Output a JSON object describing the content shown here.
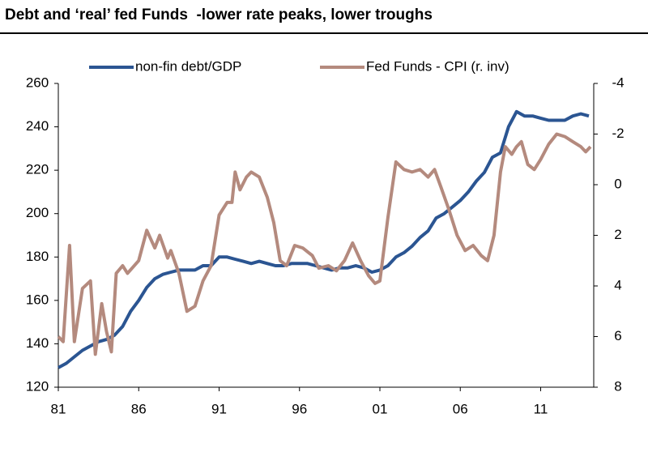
{
  "chart_data": {
    "type": "line",
    "title": "Debt and ‘real’ fed Funds  -lower rate peaks, lower troughs",
    "xlim": [
      1981,
      2014.3
    ],
    "xticks": [
      {
        "value": 1981,
        "label": "81"
      },
      {
        "value": 1986,
        "label": "86"
      },
      {
        "value": 1991,
        "label": "91"
      },
      {
        "value": 1996,
        "label": "96"
      },
      {
        "value": 2001,
        "label": "01"
      },
      {
        "value": 2006,
        "label": "06"
      },
      {
        "value": 2011,
        "label": "11"
      }
    ],
    "ylim": [
      120,
      260
    ],
    "yticks": [
      120,
      140,
      160,
      180,
      200,
      220,
      240,
      260
    ],
    "y2lim": [
      -4,
      8
    ],
    "y2ticks": [
      -4,
      -2,
      0,
      2,
      4,
      6,
      8
    ],
    "y2_inverted": true,
    "legend": "top",
    "series": [
      {
        "name": "non-fin debt/GDP",
        "color": "#2b5592",
        "x": [
          1981,
          1981.5,
          1982,
          1982.5,
          1983,
          1983.5,
          1984,
          1984.5,
          1985,
          1985.5,
          1986,
          1986.5,
          1987,
          1987.5,
          1988,
          1988.5,
          1989,
          1989.5,
          1990,
          1990.5,
          1991,
          1991.5,
          1992,
          1992.5,
          1993,
          1993.5,
          1994,
          1994.5,
          1995,
          1995.5,
          1996,
          1996.5,
          1997,
          1997.5,
          1998,
          1998.5,
          1999,
          1999.5,
          2000,
          2000.5,
          2001,
          2001.5,
          2002,
          2002.5,
          2003,
          2003.5,
          2004,
          2004.5,
          2005,
          2005.5,
          2006,
          2006.5,
          2007,
          2007.5,
          2008,
          2008.5,
          2009,
          2009.5,
          2010,
          2010.5,
          2011,
          2011.5,
          2012,
          2012.5,
          2013,
          2013.5,
          2014
        ],
        "values": [
          129,
          131,
          134,
          137,
          139,
          141,
          142,
          144,
          148,
          155,
          160,
          166,
          170,
          172,
          173,
          174,
          174,
          174,
          176,
          176,
          180,
          180,
          179,
          178,
          177,
          178,
          177,
          176,
          176,
          177,
          177,
          177,
          176,
          175,
          174,
          175,
          175,
          176,
          175,
          173,
          174,
          176,
          180,
          182,
          185,
          189,
          192,
          198,
          200,
          203,
          206,
          210,
          215,
          219,
          226,
          228,
          240,
          247,
          245,
          245,
          244,
          243,
          243,
          243,
          245,
          246,
          245
        ]
      },
      {
        "name": "Fed Funds - CPI (r. inv)",
        "color": "#b48a7e",
        "axis": "y2",
        "x": [
          1981,
          1981.3,
          1981.7,
          1982,
          1982.5,
          1983,
          1983.3,
          1983.7,
          1984,
          1984.3,
          1984.6,
          1985,
          1985.3,
          1986,
          1986.5,
          1987,
          1987.3,
          1987.8,
          1988,
          1988.5,
          1989,
          1989.5,
          1990,
          1990.5,
          1991,
          1991.5,
          1991.8,
          1992,
          1992.3,
          1992.7,
          1993,
          1993.5,
          1994,
          1994.4,
          1994.8,
          1995.2,
          1995.7,
          1996.2,
          1996.8,
          1997.2,
          1997.8,
          1998.3,
          1998.8,
          1999.3,
          1999.8,
          2000.3,
          2000.7,
          2001,
          2001.5,
          2002,
          2002.5,
          2003,
          2003.5,
          2004,
          2004.4,
          2004.8,
          2005.3,
          2005.8,
          2006.3,
          2006.8,
          2007.3,
          2007.7,
          2008.1,
          2008.5,
          2008.8,
          2009.2,
          2009.5,
          2009.8,
          2010.2,
          2010.6,
          2011,
          2011.5,
          2012,
          2012.5,
          2013,
          2013.5,
          2013.8,
          2014.1
        ],
        "values": [
          6.0,
          6.2,
          2.4,
          6.2,
          4.1,
          3.8,
          6.7,
          4.7,
          5.8,
          6.6,
          3.5,
          3.2,
          3.5,
          3.0,
          1.8,
          2.5,
          2.0,
          2.9,
          2.6,
          3.5,
          5.0,
          4.8,
          3.8,
          3.2,
          1.2,
          0.7,
          0.7,
          -0.5,
          0.2,
          -0.3,
          -0.5,
          -0.3,
          0.5,
          1.5,
          3.0,
          3.2,
          2.4,
          2.5,
          2.8,
          3.3,
          3.2,
          3.4,
          3.0,
          2.3,
          3.0,
          3.6,
          3.9,
          3.8,
          1.3,
          -0.9,
          -0.6,
          -0.5,
          -0.6,
          -0.3,
          -0.6,
          0.1,
          1.0,
          2.0,
          2.6,
          2.4,
          2.8,
          3.0,
          2.0,
          -0.5,
          -1.5,
          -1.2,
          -1.5,
          -1.7,
          -0.8,
          -0.6,
          -1.0,
          -1.6,
          -2.0,
          -1.9,
          -1.7,
          -1.5,
          -1.3,
          -1.5
        ]
      }
    ]
  }
}
